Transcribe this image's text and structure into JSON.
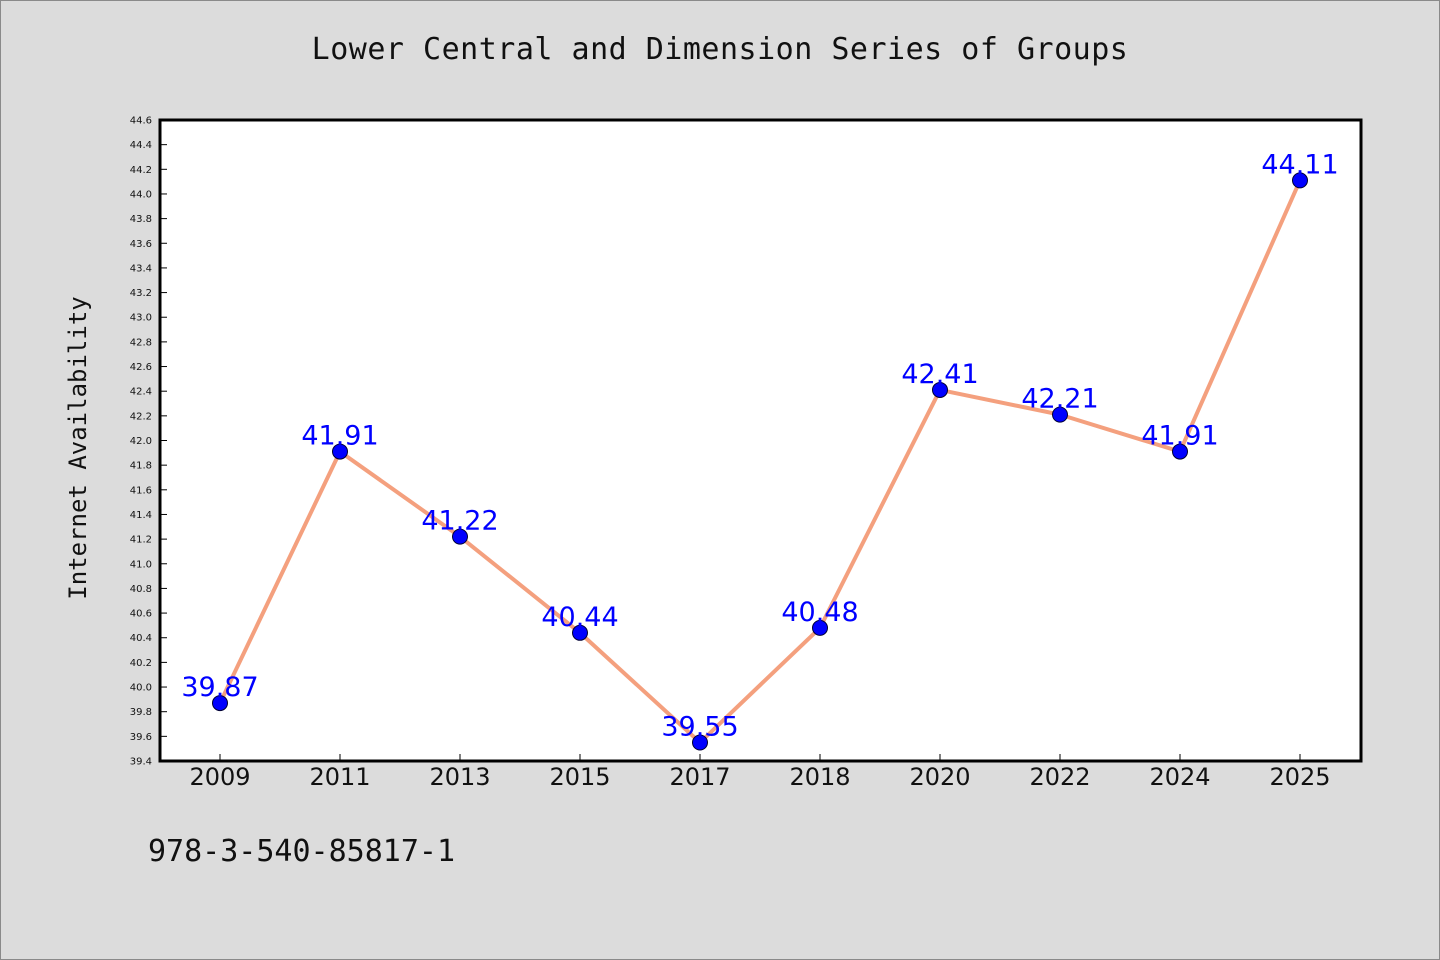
{
  "chart_data": {
    "type": "line",
    "title": "Lower Central and Dimension Series of Groups",
    "xlabel": "",
    "ylabel": "Internet Availability",
    "categories": [
      "2009",
      "2011",
      "2013",
      "2015",
      "2017",
      "2018",
      "2020",
      "2022",
      "2024",
      "2025"
    ],
    "series": [
      {
        "values": [
          39.87,
          41.91,
          41.22,
          40.44,
          39.55,
          40.48,
          42.41,
          42.21,
          41.91,
          44.11
        ],
        "labels": [
          "39.87",
          "41.91",
          "41.22",
          "40.44",
          "39.55",
          "40.48",
          "42.41",
          "42.21",
          "41.91",
          "44.11"
        ]
      }
    ],
    "ylim": [
      39.4,
      44.6
    ],
    "yticks": [
      "39.4",
      "39.6",
      "39.8",
      "40.0",
      "40.2",
      "40.4",
      "40.6",
      "40.8",
      "41.0",
      "41.2",
      "41.4",
      "41.6",
      "41.8",
      "42.0",
      "42.2",
      "42.4",
      "42.6",
      "42.8",
      "43.0",
      "43.2",
      "43.4",
      "43.6",
      "43.8",
      "44.0",
      "44.2",
      "44.4",
      "44.6"
    ],
    "grid": false,
    "legend": "none",
    "colors": {
      "line": "#f4a07e",
      "marker": "#0000ff",
      "data_label": "#0000ff",
      "plot_background": "#ffffff",
      "figure_background": "#dcdcdc"
    }
  },
  "footer": {
    "code": "978-3-540-85817-1"
  }
}
